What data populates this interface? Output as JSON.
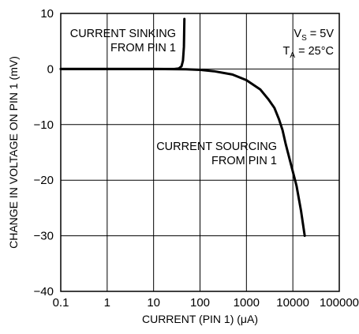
{
  "chart_data": {
    "type": "line",
    "title": "",
    "xlabel": "CURRENT (PIN 1) (μA)",
    "ylabel": "CHANGE IN VOLTAGE ON PIN 1 (mV)",
    "xscale": "log",
    "xlim": [
      0.1,
      100000
    ],
    "ylim": [
      -40,
      10
    ],
    "grid": true,
    "x_ticks": [
      "0.1",
      "1",
      "10",
      "100",
      "1000",
      "10000",
      "100000"
    ],
    "y_ticks": [
      "10",
      "0",
      "−10",
      "−20",
      "−30",
      "−40"
    ],
    "y_tick_values": [
      10,
      0,
      -10,
      -20,
      -30,
      -40
    ],
    "conditions": {
      "vs": {
        "prefix": "V",
        "sub": "S",
        "suffix": " = 5V"
      },
      "ta": {
        "prefix": "T",
        "sub": "A",
        "suffix": " = 25°C"
      }
    },
    "series": [
      {
        "name": "CURRENT SINKING FROM PIN 1",
        "points": [
          [
            0.1,
            0
          ],
          [
            10,
            0
          ],
          [
            28,
            0
          ],
          [
            35,
            0.1
          ],
          [
            40,
            0.5
          ],
          [
            43,
            1.5
          ],
          [
            45,
            4
          ],
          [
            46,
            9
          ]
        ]
      },
      {
        "name": "CURRENT SOURCING FROM PIN 1",
        "points": [
          [
            0.1,
            0
          ],
          [
            10,
            0
          ],
          [
            50,
            -0.05
          ],
          [
            100,
            -0.15
          ],
          [
            200,
            -0.4
          ],
          [
            500,
            -1
          ],
          [
            1000,
            -2
          ],
          [
            2000,
            -3.7
          ],
          [
            3000,
            -5.5
          ],
          [
            4000,
            -7
          ],
          [
            5000,
            -9
          ],
          [
            6000,
            -11
          ],
          [
            7000,
            -13.5
          ],
          [
            9000,
            -17
          ],
          [
            12000,
            -21
          ],
          [
            15000,
            -25.5
          ],
          [
            18000,
            -30
          ]
        ]
      }
    ],
    "annotations": {
      "sinking": [
        "CURRENT SINKING",
        "FROM PIN 1"
      ],
      "sourcing": [
        "CURRENT SOURCING",
        "FROM PIN 1"
      ]
    }
  }
}
